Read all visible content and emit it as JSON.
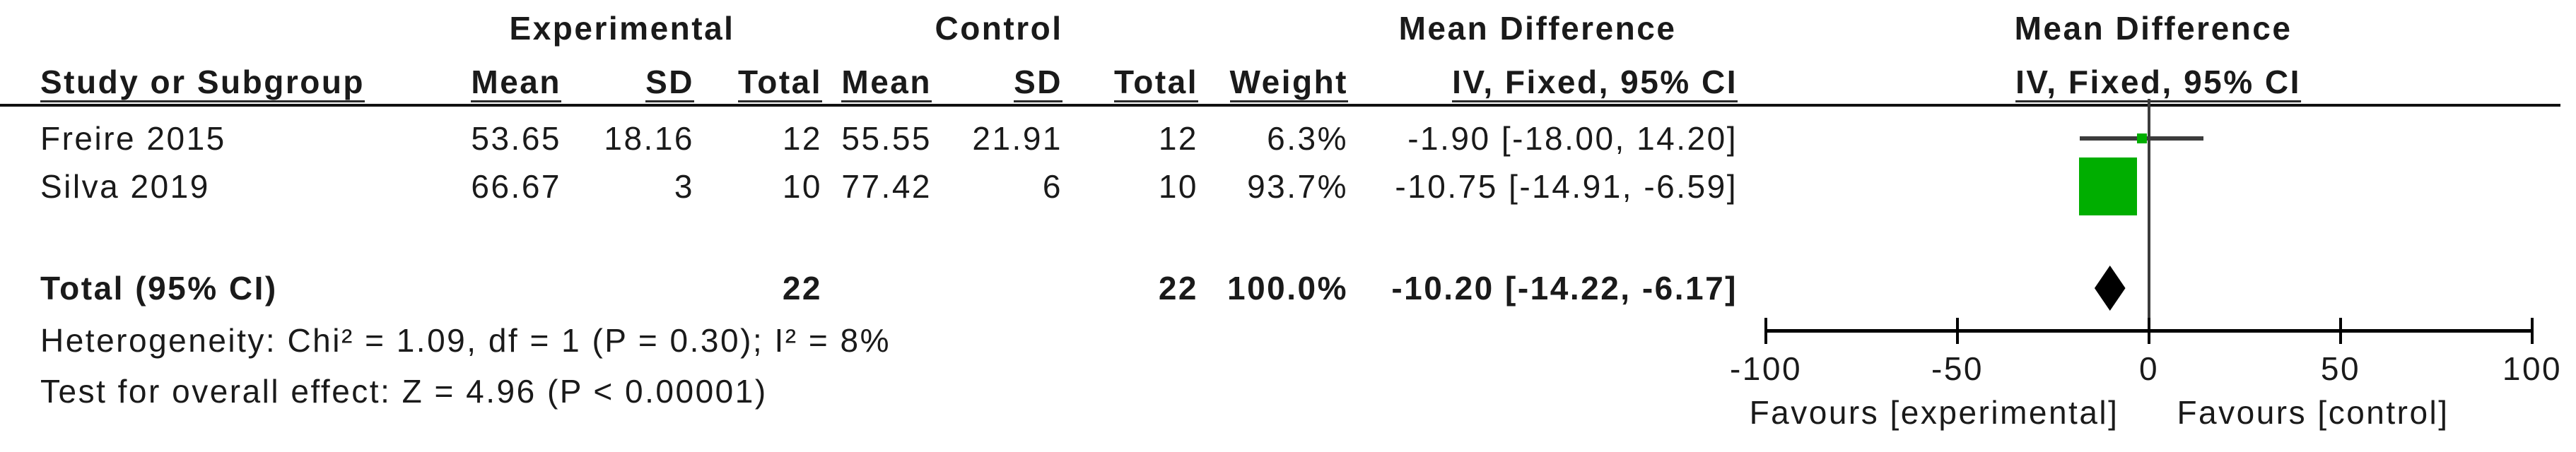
{
  "figure": {
    "groups": {
      "experimental": "Experimental",
      "control": "Control",
      "mean_difference": "Mean Difference"
    },
    "subheaders": {
      "study": "Study or Subgroup",
      "mean": "Mean",
      "sd": "SD",
      "total": "Total",
      "weight": "Weight",
      "iv_fixed": "IV, Fixed, 95% CI"
    }
  },
  "chart_data": {
    "type": "forest",
    "effect_measure": "Mean Difference",
    "method": "IV, Fixed, 95% CI",
    "rows": [
      {
        "study": "Freire 2015",
        "exp_mean": "53.65",
        "exp_sd": "18.16",
        "exp_total": "12",
        "ctrl_mean": "55.55",
        "ctrl_sd": "21.91",
        "ctrl_total": "12",
        "weight": "6.3%",
        "ci_text": "-1.90 [-18.00, 14.20]",
        "estimate": -1.9,
        "ci_low": -18.0,
        "ci_high": 14.2,
        "marker_px": 14
      },
      {
        "study": "Silva 2019",
        "exp_mean": "66.67",
        "exp_sd": "3",
        "exp_total": "10",
        "ctrl_mean": "77.42",
        "ctrl_sd": "6",
        "ctrl_total": "10",
        "weight": "93.7%",
        "ci_text": "-10.75 [-14.91, -6.59]",
        "estimate": -10.75,
        "ci_low": -14.91,
        "ci_high": -6.59,
        "marker_px": 82
      }
    ],
    "total": {
      "label": "Total (95% CI)",
      "exp_total": "22",
      "ctrl_total": "22",
      "weight": "100.0%",
      "ci_text": "-10.20 [-14.22, -6.17]",
      "estimate": -10.2,
      "ci_low": -14.22,
      "ci_high": -6.17
    },
    "footnotes": {
      "heterogeneity": "Heterogeneity: Chi² = 1.09, df = 1 (P = 0.30); I² = 8%",
      "overall_effect": "Test for overall effect: Z = 4.96 (P < 0.00001)"
    },
    "axis": {
      "min": -100,
      "max": 100,
      "ticks": [
        -100,
        -50,
        0,
        50,
        100
      ],
      "label_left": "Favours [experimental]",
      "label_right": "Favours [control]"
    },
    "colors": {
      "square": "#00AE00",
      "ci_line": "#3C3C3C",
      "zero_line": "#3C3C3C",
      "axis": "#000000",
      "diamond": "#000000",
      "text": "#1A1A1A"
    }
  }
}
